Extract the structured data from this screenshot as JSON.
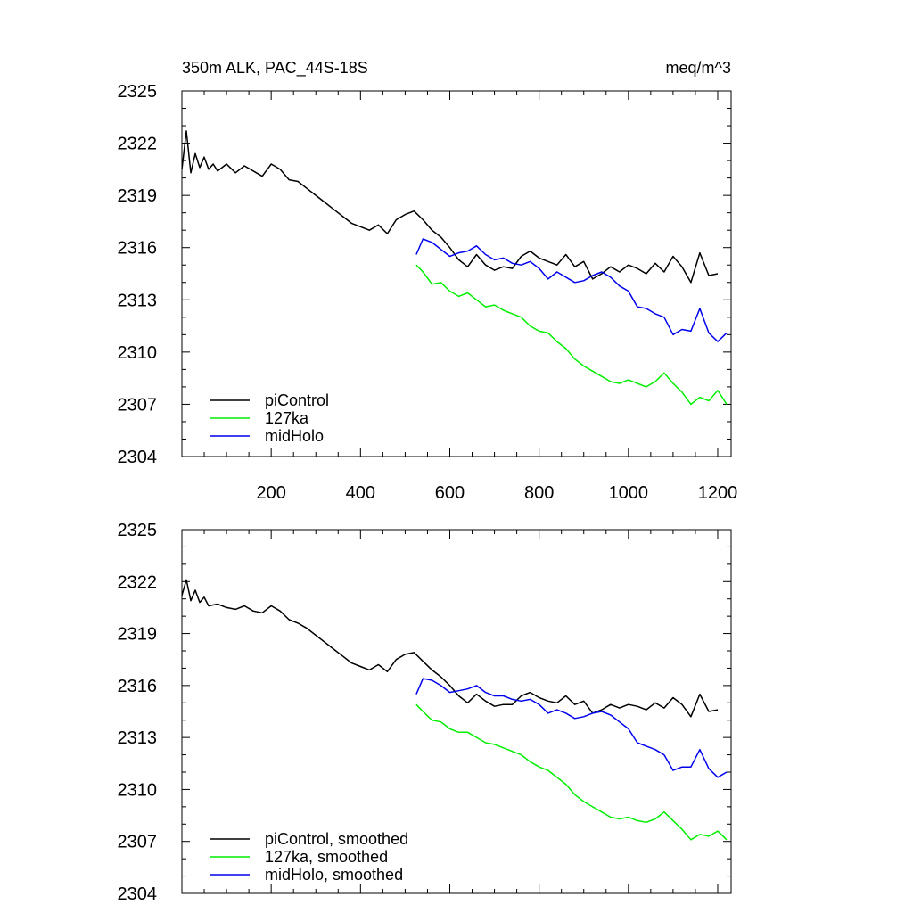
{
  "colors": {
    "piControl": "#000000",
    "127ka": "#00ee00",
    "midHolo": "#0000ee"
  },
  "chart_data": [
    {
      "type": "line",
      "title": "350m ALK, PAC_44S-18S",
      "units": "meq/m^3",
      "xlim": [
        0,
        1230
      ],
      "xticks": [
        200,
        400,
        600,
        800,
        1000,
        1200
      ],
      "ylim": [
        2304,
        2325
      ],
      "yticks": [
        2304,
        2307,
        2310,
        2313,
        2316,
        2319,
        2322,
        2325
      ],
      "legend_position": "bottom-left",
      "series": [
        {
          "name": "piControl",
          "color_key": "piControl",
          "x": [
            0,
            10,
            20,
            30,
            40,
            50,
            60,
            70,
            80,
            90,
            100,
            120,
            140,
            160,
            180,
            200,
            220,
            240,
            260,
            280,
            300,
            320,
            340,
            360,
            380,
            400,
            420,
            440,
            460,
            480,
            500,
            520,
            540,
            560,
            580,
            600,
            620,
            640,
            660,
            680,
            700,
            720,
            740,
            760,
            780,
            800,
            820,
            840,
            860,
            880,
            900,
            920,
            940,
            960,
            980,
            1000,
            1020,
            1040,
            1060,
            1080,
            1100,
            1120,
            1140,
            1160,
            1180,
            1200
          ],
          "y": [
            2320.5,
            2322.7,
            2320.3,
            2321.4,
            2320.6,
            2321.2,
            2320.5,
            2320.8,
            2320.4,
            2320.6,
            2320.8,
            2320.3,
            2320.7,
            2320.4,
            2320.1,
            2320.8,
            2320.5,
            2319.9,
            2319.8,
            2319.4,
            2319.0,
            2318.6,
            2318.2,
            2317.8,
            2317.4,
            2317.2,
            2317.0,
            2317.3,
            2316.8,
            2317.6,
            2317.9,
            2318.1,
            2317.6,
            2317.0,
            2316.6,
            2316.0,
            2315.3,
            2314.9,
            2315.6,
            2315.0,
            2314.7,
            2314.9,
            2314.8,
            2315.5,
            2315.8,
            2315.4,
            2315.2,
            2315.0,
            2315.6,
            2314.9,
            2315.2,
            2314.2,
            2314.5,
            2314.9,
            2314.6,
            2315.0,
            2314.8,
            2314.5,
            2315.1,
            2314.6,
            2315.5,
            2314.9,
            2314.0,
            2315.7,
            2314.4,
            2314.5
          ]
        },
        {
          "name": "127ka",
          "color_key": "127ka",
          "x": [
            525,
            540,
            560,
            580,
            600,
            620,
            640,
            660,
            680,
            700,
            720,
            740,
            760,
            780,
            800,
            820,
            840,
            860,
            880,
            900,
            920,
            940,
            960,
            980,
            1000,
            1020,
            1040,
            1060,
            1080,
            1100,
            1120,
            1140,
            1160,
            1180,
            1200,
            1220
          ],
          "y": [
            2315.0,
            2314.6,
            2313.9,
            2314.0,
            2313.5,
            2313.2,
            2313.4,
            2313.0,
            2312.6,
            2312.7,
            2312.4,
            2312.2,
            2312.0,
            2311.5,
            2311.2,
            2311.1,
            2310.6,
            2310.2,
            2309.6,
            2309.2,
            2308.9,
            2308.6,
            2308.3,
            2308.2,
            2308.4,
            2308.2,
            2308.0,
            2308.3,
            2308.8,
            2308.2,
            2307.7,
            2307.0,
            2307.4,
            2307.2,
            2307.8,
            2307.0
          ]
        },
        {
          "name": "midHolo",
          "color_key": "midHolo",
          "x": [
            525,
            540,
            560,
            580,
            600,
            620,
            640,
            660,
            680,
            700,
            720,
            740,
            760,
            780,
            800,
            820,
            840,
            860,
            880,
            900,
            920,
            940,
            960,
            980,
            1000,
            1020,
            1040,
            1060,
            1080,
            1100,
            1120,
            1140,
            1160,
            1180,
            1200,
            1220
          ],
          "y": [
            2315.6,
            2316.5,
            2316.3,
            2315.9,
            2315.5,
            2315.7,
            2315.8,
            2316.1,
            2315.6,
            2315.3,
            2315.4,
            2315.1,
            2315.0,
            2315.2,
            2314.8,
            2314.2,
            2314.6,
            2314.3,
            2314.0,
            2314.1,
            2314.4,
            2314.6,
            2314.3,
            2313.8,
            2313.5,
            2312.6,
            2312.5,
            2312.2,
            2312.0,
            2311.0,
            2311.3,
            2311.2,
            2312.5,
            2311.1,
            2310.6,
            2311.1
          ]
        }
      ]
    },
    {
      "type": "line",
      "title": "",
      "xlim": [
        0,
        1230
      ],
      "xticks": [
        200,
        400,
        600,
        800,
        1000,
        1200
      ],
      "ylim": [
        2304,
        2325
      ],
      "yticks": [
        2304,
        2307,
        2310,
        2313,
        2316,
        2319,
        2322,
        2325
      ],
      "legend_position": "bottom-left",
      "series": [
        {
          "name": "piControl, smoothed",
          "color_key": "piControl",
          "x": [
            0,
            10,
            20,
            30,
            40,
            50,
            60,
            80,
            100,
            120,
            140,
            160,
            180,
            200,
            220,
            240,
            260,
            280,
            300,
            320,
            340,
            360,
            380,
            400,
            420,
            440,
            460,
            480,
            500,
            520,
            540,
            560,
            580,
            600,
            620,
            640,
            660,
            680,
            700,
            720,
            740,
            760,
            780,
            800,
            820,
            840,
            860,
            880,
            900,
            920,
            940,
            960,
            980,
            1000,
            1020,
            1040,
            1060,
            1080,
            1100,
            1120,
            1140,
            1160,
            1180,
            1200
          ],
          "y": [
            2321.2,
            2322.1,
            2320.9,
            2321.5,
            2320.8,
            2321.1,
            2320.6,
            2320.7,
            2320.5,
            2320.4,
            2320.6,
            2320.3,
            2320.2,
            2320.6,
            2320.3,
            2319.8,
            2319.6,
            2319.3,
            2318.9,
            2318.5,
            2318.1,
            2317.7,
            2317.3,
            2317.1,
            2316.9,
            2317.2,
            2316.8,
            2317.5,
            2317.8,
            2317.9,
            2317.4,
            2316.9,
            2316.5,
            2316.0,
            2315.4,
            2315.0,
            2315.5,
            2315.1,
            2314.8,
            2314.9,
            2314.9,
            2315.4,
            2315.6,
            2315.3,
            2315.1,
            2315.0,
            2315.4,
            2314.9,
            2315.1,
            2314.4,
            2314.6,
            2314.9,
            2314.7,
            2314.9,
            2314.8,
            2314.6,
            2315.0,
            2314.7,
            2315.3,
            2314.9,
            2314.2,
            2315.5,
            2314.5,
            2314.6
          ]
        },
        {
          "name": "127ka, smoothed",
          "color_key": "127ka",
          "x": [
            525,
            540,
            560,
            580,
            600,
            620,
            640,
            660,
            680,
            700,
            720,
            740,
            760,
            780,
            800,
            820,
            840,
            860,
            880,
            900,
            920,
            940,
            960,
            980,
            1000,
            1020,
            1040,
            1060,
            1080,
            1100,
            1120,
            1140,
            1160,
            1180,
            1200,
            1220
          ],
          "y": [
            2314.9,
            2314.5,
            2314.0,
            2313.9,
            2313.5,
            2313.3,
            2313.3,
            2313.0,
            2312.7,
            2312.6,
            2312.4,
            2312.2,
            2312.0,
            2311.6,
            2311.3,
            2311.1,
            2310.7,
            2310.3,
            2309.7,
            2309.3,
            2309.0,
            2308.7,
            2308.4,
            2308.3,
            2308.4,
            2308.2,
            2308.1,
            2308.3,
            2308.7,
            2308.2,
            2307.7,
            2307.1,
            2307.4,
            2307.3,
            2307.6,
            2307.1
          ]
        },
        {
          "name": "midHolo, smoothed",
          "color_key": "midHolo",
          "x": [
            525,
            540,
            560,
            580,
            600,
            620,
            640,
            660,
            680,
            700,
            720,
            740,
            760,
            780,
            800,
            820,
            840,
            860,
            880,
            900,
            920,
            940,
            960,
            980,
            1000,
            1020,
            1040,
            1060,
            1080,
            1100,
            1120,
            1140,
            1160,
            1180,
            1200,
            1220
          ],
          "y": [
            2315.5,
            2316.4,
            2316.3,
            2316.0,
            2315.6,
            2315.7,
            2315.8,
            2316.0,
            2315.6,
            2315.4,
            2315.4,
            2315.2,
            2315.1,
            2315.2,
            2314.9,
            2314.4,
            2314.6,
            2314.4,
            2314.1,
            2314.2,
            2314.4,
            2314.5,
            2314.3,
            2313.9,
            2313.5,
            2312.7,
            2312.5,
            2312.3,
            2312.0,
            2311.1,
            2311.3,
            2311.3,
            2312.3,
            2311.2,
            2310.7,
            2311.0
          ]
        }
      ]
    }
  ]
}
